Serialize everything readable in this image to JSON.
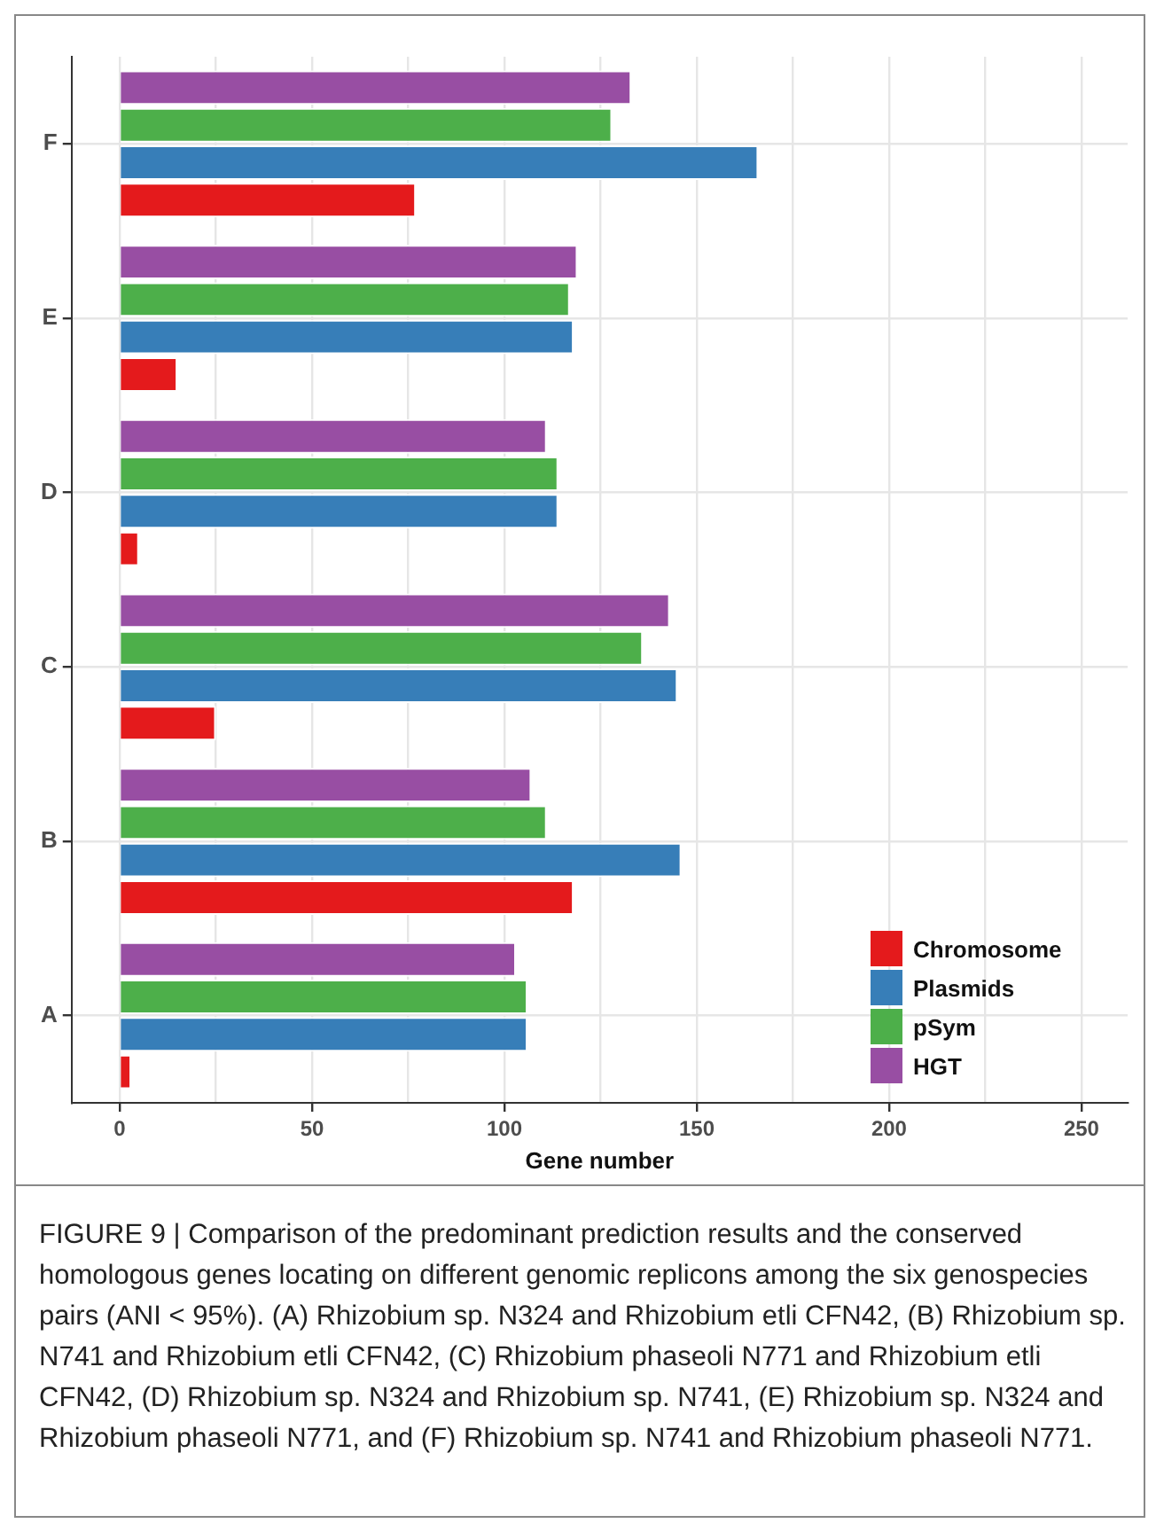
{
  "chart_data": {
    "type": "bar",
    "orientation": "horizontal",
    "xlabel": "Gene number",
    "categories": [
      "F",
      "E",
      "D",
      "C",
      "B",
      "A"
    ],
    "series": [
      {
        "name": "Chromosome",
        "color": "#e41a1c",
        "values": [
          77,
          15,
          5,
          25,
          118,
          3
        ]
      },
      {
        "name": "Plasmids",
        "color": "#377eb8",
        "values": [
          166,
          118,
          114,
          145,
          146,
          106
        ]
      },
      {
        "name": "pSym",
        "color": "#4daf4a",
        "values": [
          128,
          117,
          114,
          136,
          111,
          106
        ]
      },
      {
        "name": "HGT",
        "color": "#984ea3",
        "values": [
          133,
          119,
          111,
          143,
          107,
          103
        ]
      }
    ],
    "xlim": [
      -12.5,
      262
    ],
    "xticks": [
      0,
      {
        "value": 25,
        "label": null
      },
      50,
      {
        "value": 75,
        "label": null
      },
      100,
      {
        "value": 125,
        "label": null
      },
      150,
      {
        "value": 175,
        "label": null
      },
      200,
      {
        "value": 225,
        "label": null
      },
      250
    ],
    "grid": true,
    "legend": "bottom right",
    "annotations": [
      "FIGURE 9 | Comparison of the predominant prediction results and the conserved homologous genes locating on different genomic replicons among the six genospecies pairs (ANI < 95%). (A) Rhizobium sp. N324 and Rhizobium etli CFN42, (B) Rhizobium sp. N741 and Rhizobium etli CFN42, (C) Rhizobium phaseoli N771 and Rhizobium etli CFN42, (D) Rhizobium sp. N324 and Rhizobium sp. N741, (E) Rhizobium sp. N324 and Rhizobium phaseoli N771, and (F) Rhizobium sp. N741 and Rhizobium phaseoli N771."
    ]
  }
}
